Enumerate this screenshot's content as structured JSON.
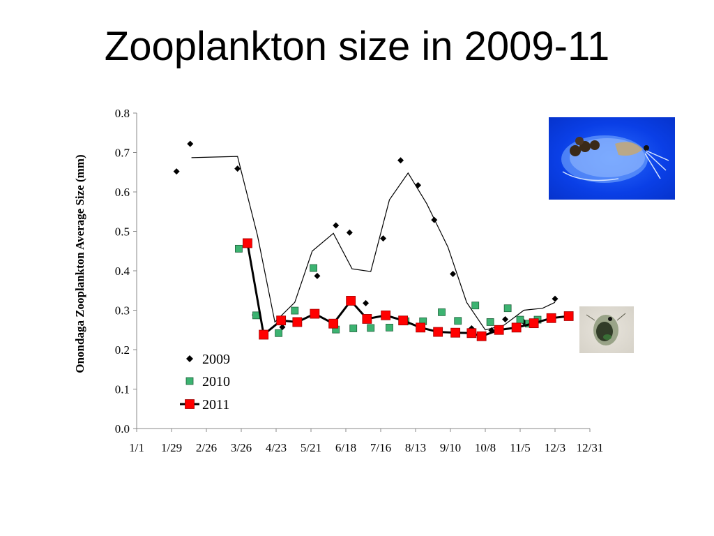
{
  "slide": {
    "title": "Zooplankton size in 2009-11"
  },
  "chart_data": {
    "type": "scatter",
    "title": "",
    "xlabel": "",
    "ylabel": "Onondaga Zooplankton Average Size (mm)",
    "x_axis_type": "date (day of year)",
    "x_tick_labels": [
      "1/1",
      "1/29",
      "2/26",
      "3/26",
      "4/23",
      "5/21",
      "6/18",
      "7/16",
      "8/13",
      "9/10",
      "10/8",
      "11/5",
      "12/3",
      "12/31"
    ],
    "y_tick_labels": [
      "0.0",
      "0.1",
      "0.2",
      "0.3",
      "0.4",
      "0.5",
      "0.6",
      "0.7",
      "0.8"
    ],
    "xlim": [
      "1/1",
      "12/31"
    ],
    "ylim": [
      0,
      0.8
    ],
    "grid": false,
    "legend_position": "lower-left inside plot",
    "series": [
      {
        "name": "2009",
        "marker": "diamond",
        "color": "#000000",
        "x": [
          "2/2",
          "2/13",
          "3/23",
          "4/6",
          "4/28",
          "5/26",
          "6/10",
          "6/21",
          "7/4",
          "7/18",
          "8/1",
          "8/15",
          "8/28",
          "9/12",
          "9/27",
          "10/13",
          "10/24",
          "11/8",
          "12/3"
        ],
        "y": [
          0.652,
          0.722,
          0.659,
          0.288,
          0.257,
          0.387,
          0.515,
          0.497,
          0.318,
          0.482,
          0.68,
          0.617,
          0.529,
          0.392,
          0.254,
          0.249,
          0.277,
          0.27,
          0.329
        ]
      },
      {
        "name": "2009 moving average",
        "marker": "none",
        "color": "#000000",
        "x": [
          "2/14",
          "3/23",
          "4/8",
          "4/22",
          "5/8",
          "5/22",
          "6/8",
          "6/23",
          "7/8",
          "7/23",
          "8/7",
          "8/22",
          "9/8",
          "9/23",
          "10/8",
          "10/23",
          "11/8",
          "11/23",
          "12/3"
        ],
        "y": [
          0.687,
          0.69,
          0.49,
          0.27,
          0.32,
          0.45,
          0.495,
          0.405,
          0.398,
          0.58,
          0.648,
          0.57,
          0.46,
          0.32,
          0.25,
          0.262,
          0.3,
          0.305,
          0.32
        ]
      },
      {
        "name": "2010",
        "marker": "square",
        "color": "#3cb371",
        "x": [
          "3/24",
          "4/7",
          "4/25",
          "5/8",
          "5/23",
          "6/10",
          "6/24",
          "7/8",
          "7/23",
          "8/5",
          "8/19",
          "9/3",
          "9/16",
          "9/30",
          "10/12",
          "10/26",
          "11/5",
          "11/12",
          "11/19"
        ],
        "y": [
          0.456,
          0.287,
          0.242,
          0.299,
          0.407,
          0.251,
          0.254,
          0.255,
          0.256,
          0.272,
          0.272,
          0.295,
          0.273,
          0.312,
          0.27,
          0.305,
          0.276,
          0.266,
          0.276
        ]
      },
      {
        "name": "2011",
        "marker": "square",
        "color": "#ff0000",
        "line_color": "#000000",
        "x": [
          "3/31",
          "4/13",
          "4/27",
          "5/10",
          "5/24",
          "6/8",
          "6/22",
          "7/5",
          "7/20",
          "8/3",
          "8/17",
          "8/31",
          "9/14",
          "9/27",
          "10/5",
          "10/19",
          "11/2",
          "11/16",
          "11/30",
          "12/14"
        ],
        "y": [
          0.47,
          0.238,
          0.274,
          0.27,
          0.291,
          0.266,
          0.324,
          0.278,
          0.287,
          0.274,
          0.256,
          0.245,
          0.243,
          0.242,
          0.234,
          0.25,
          0.256,
          0.267,
          0.28,
          0.285
        ]
      }
    ]
  },
  "images": {
    "daphnia_photo": "daphnia-photo",
    "copepod_photo": "copepod-photo"
  }
}
